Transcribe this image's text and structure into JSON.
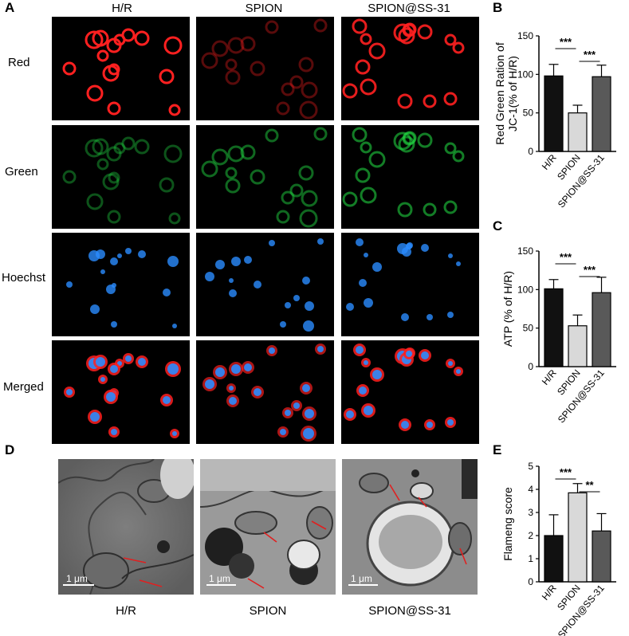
{
  "panel_labels": {
    "a": "A",
    "b": "B",
    "c": "C",
    "d": "D",
    "e": "E"
  },
  "microscopy": {
    "columns": [
      "H/R",
      "SPION",
      "SPION@SS-31"
    ],
    "rows": [
      "Red",
      "Green",
      "Hoechst",
      "Merged"
    ]
  },
  "tem": {
    "labels": [
      "H/R",
      "SPION",
      "SPION@SS-31"
    ],
    "scale_bar": "1 μm"
  },
  "chart_data": [
    {
      "type": "bar",
      "panel": "B",
      "categories": [
        "H/R",
        "SPION",
        "SPION@SS-31"
      ],
      "values": [
        98,
        50,
        97
      ],
      "errors": [
        15,
        10,
        15
      ],
      "fills": [
        "#111111",
        "#d9d9d9",
        "#595959"
      ],
      "ylabel": "Red Green Ration  of JC-1(% of H/R)",
      "ylim": [
        0,
        150
      ],
      "yticks": [
        0,
        50,
        100,
        150
      ],
      "significance": [
        "***",
        "***"
      ]
    },
    {
      "type": "bar",
      "panel": "C",
      "categories": [
        "H/R",
        "SPION",
        "SPION@SS-31"
      ],
      "values": [
        101,
        53,
        96
      ],
      "errors": [
        12,
        14,
        20
      ],
      "fills": [
        "#111111",
        "#d9d9d9",
        "#595959"
      ],
      "ylabel": "ATP (% of H/R)",
      "ylim": [
        0,
        150
      ],
      "yticks": [
        0,
        50,
        100,
        150
      ],
      "significance": [
        "***",
        "***"
      ]
    },
    {
      "type": "bar",
      "panel": "E",
      "categories": [
        "H/R",
        "SPION",
        "SPION@SS-31"
      ],
      "values": [
        2.0,
        3.85,
        2.2
      ],
      "errors": [
        0.9,
        0.4,
        0.75
      ],
      "fills": [
        "#111111",
        "#d9d9d9",
        "#595959"
      ],
      "ylabel": "Flameng  score",
      "ylim": [
        0,
        5
      ],
      "yticks": [
        0,
        1,
        2,
        3,
        4,
        5
      ],
      "significance": [
        "***",
        "**"
      ]
    }
  ],
  "colors": {
    "red": "#ff2020",
    "green": "#20d040",
    "blue": "#2a8cff"
  }
}
